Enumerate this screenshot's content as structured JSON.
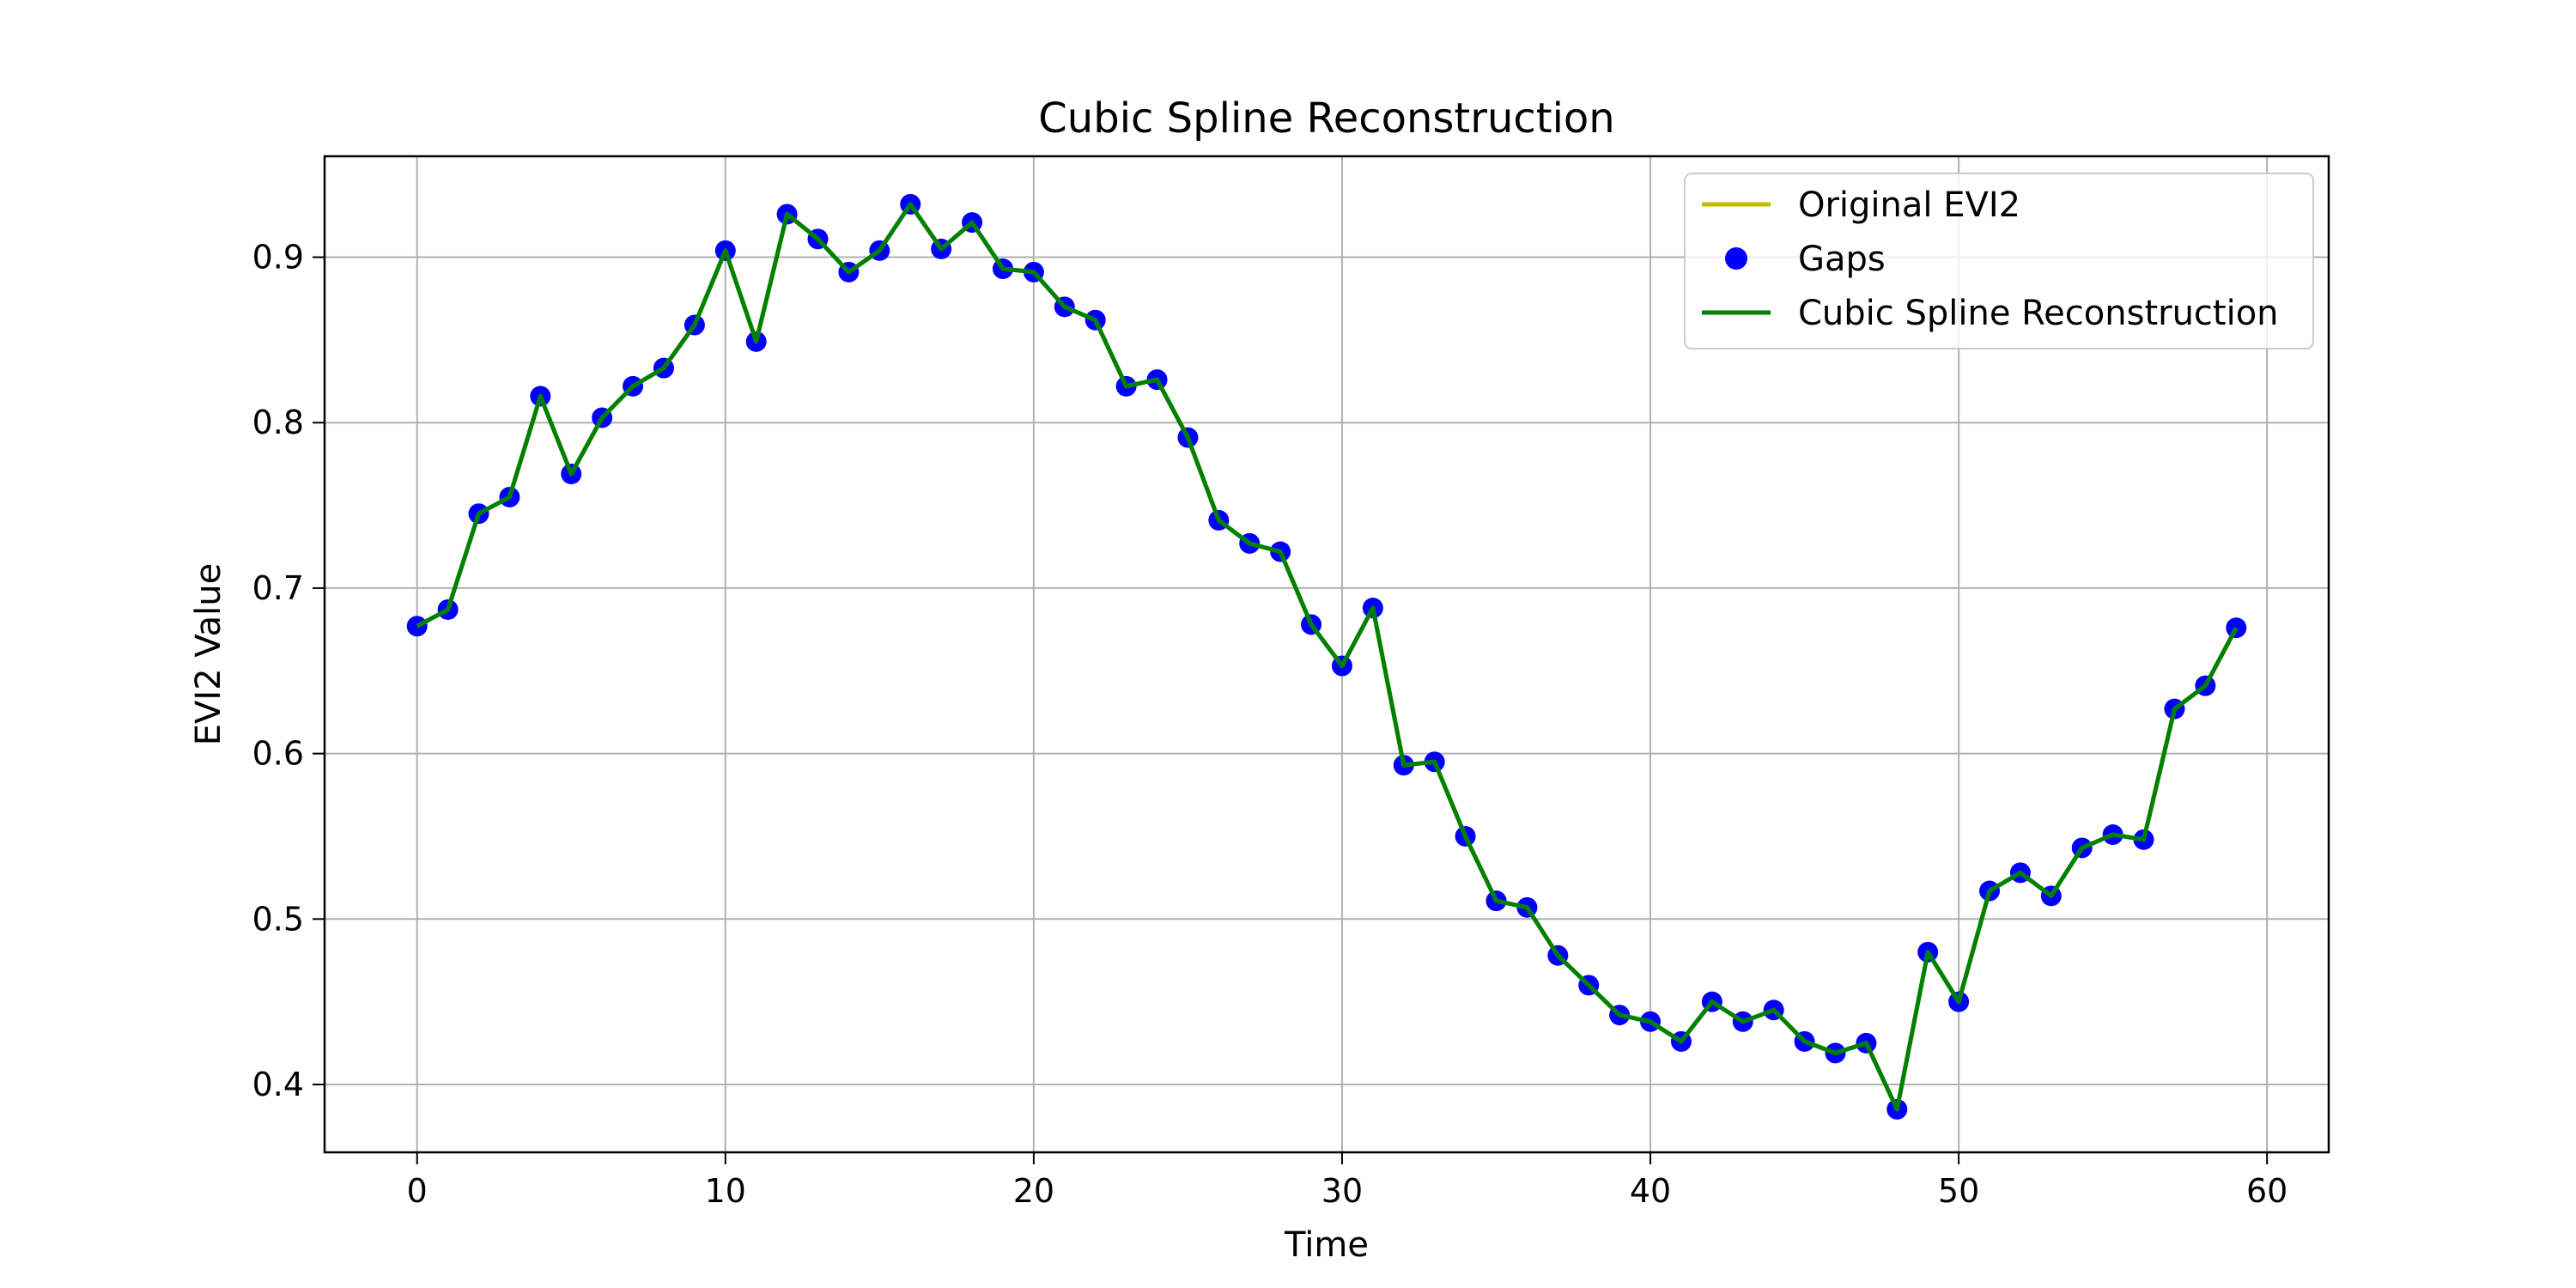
{
  "chart_data": {
    "type": "line",
    "title": "Cubic Spline Reconstruction",
    "xlabel": "Time",
    "ylabel": "EVI2 Value",
    "xlim": [
      -3,
      62
    ],
    "ylim": [
      0.359,
      0.961
    ],
    "xticks": [
      0,
      10,
      20,
      30,
      40,
      50,
      60
    ],
    "yticks": [
      0.4,
      0.5,
      0.6,
      0.7,
      0.8,
      0.9
    ],
    "grid": true,
    "legend_position": "top-right",
    "x": [
      0,
      1,
      2,
      3,
      4,
      5,
      6,
      7,
      8,
      9,
      10,
      11,
      12,
      13,
      14,
      15,
      16,
      17,
      18,
      19,
      20,
      21,
      22,
      23,
      24,
      25,
      26,
      27,
      28,
      29,
      30,
      31,
      32,
      33,
      34,
      35,
      36,
      37,
      38,
      39,
      40,
      41,
      42,
      43,
      44,
      45,
      46,
      47,
      48,
      49,
      50,
      51,
      52,
      53,
      54,
      55,
      56,
      57,
      58,
      59
    ],
    "series": [
      {
        "name": "Original EVI2",
        "kind": "line",
        "color": "#bfbf00",
        "values": [
          0.677,
          0.687,
          0.745,
          0.755,
          0.816,
          0.769,
          0.803,
          0.822,
          0.833,
          0.859,
          0.904,
          0.849,
          0.926,
          0.911,
          0.891,
          0.904,
          0.932,
          0.905,
          0.921,
          0.893,
          0.891,
          0.87,
          0.862,
          0.822,
          0.826,
          0.791,
          0.741,
          0.727,
          0.722,
          0.678,
          0.653,
          0.688,
          0.593,
          0.595,
          0.55,
          0.511,
          0.507,
          0.478,
          0.46,
          0.442,
          0.438,
          0.426,
          0.45,
          0.438,
          0.445,
          0.426,
          0.419,
          0.425,
          0.385,
          0.48,
          0.45,
          0.517,
          0.528,
          0.514,
          0.543,
          0.551,
          0.548,
          0.627,
          0.641,
          0.676
        ]
      },
      {
        "name": "Gaps",
        "kind": "scatter",
        "color": "#0000ff",
        "values": [
          0.677,
          0.687,
          0.745,
          0.755,
          0.816,
          0.769,
          0.803,
          0.822,
          0.833,
          0.859,
          0.904,
          0.849,
          0.926,
          0.911,
          0.891,
          0.904,
          0.932,
          0.905,
          0.921,
          0.893,
          0.891,
          0.87,
          0.862,
          0.822,
          0.826,
          0.791,
          0.741,
          0.727,
          0.722,
          0.678,
          0.653,
          0.688,
          0.593,
          0.595,
          0.55,
          0.511,
          0.507,
          0.478,
          0.46,
          0.442,
          0.438,
          0.426,
          0.45,
          0.438,
          0.445,
          0.426,
          0.419,
          0.425,
          0.385,
          0.48,
          0.45,
          0.517,
          0.528,
          0.514,
          0.543,
          0.551,
          0.548,
          0.627,
          0.641,
          0.676
        ]
      },
      {
        "name": "Cubic Spline Reconstruction",
        "kind": "line",
        "color": "#008000",
        "values": [
          0.677,
          0.687,
          0.745,
          0.755,
          0.816,
          0.769,
          0.803,
          0.822,
          0.833,
          0.859,
          0.904,
          0.849,
          0.926,
          0.911,
          0.891,
          0.904,
          0.932,
          0.905,
          0.921,
          0.893,
          0.891,
          0.87,
          0.862,
          0.822,
          0.826,
          0.791,
          0.741,
          0.727,
          0.722,
          0.678,
          0.653,
          0.688,
          0.593,
          0.595,
          0.55,
          0.511,
          0.507,
          0.478,
          0.46,
          0.442,
          0.438,
          0.426,
          0.45,
          0.438,
          0.445,
          0.426,
          0.419,
          0.425,
          0.385,
          0.48,
          0.45,
          0.517,
          0.528,
          0.514,
          0.543,
          0.551,
          0.548,
          0.627,
          0.641,
          0.676
        ]
      }
    ]
  }
}
